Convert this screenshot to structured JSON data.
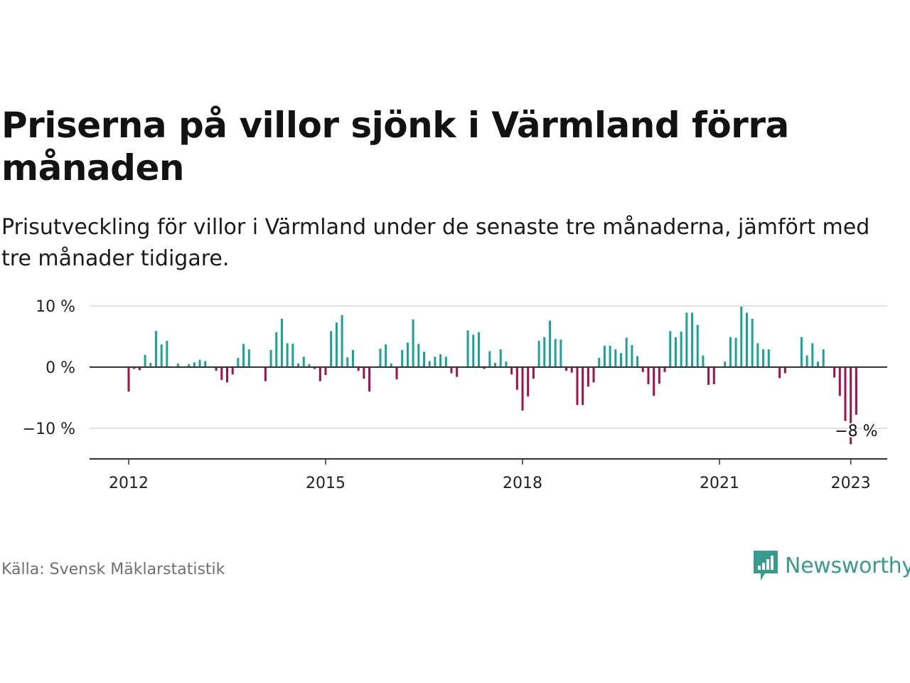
{
  "header": {
    "title": "Priserna på villor sjönk i Värmland förra månaden",
    "subtitle": "Prisutveckling för villor i Värmland under de senaste tre månaderna, jämfört med tre månader tidigare."
  },
  "footer": {
    "source": "Källa: Svensk Mäklarstatistik",
    "brand": "Newsworthy"
  },
  "colors": {
    "positive": "#17a398",
    "negative": "#a3104a",
    "grid": "#d9d9d9",
    "axis": "#333333",
    "brand": "#3a9a8e"
  },
  "chart_data": {
    "type": "bar",
    "x_start": "2012-01",
    "values": [
      -4.0,
      -0.3,
      -0.5,
      2.0,
      0.7,
      5.9,
      3.7,
      4.3,
      0.0,
      0.6,
      0.0,
      0.5,
      0.8,
      1.2,
      1.0,
      0.0,
      -0.6,
      -2.1,
      -2.5,
      -1.2,
      1.5,
      3.8,
      2.9,
      0.0,
      0.0,
      -2.3,
      2.8,
      5.7,
      7.9,
      3.9,
      3.8,
      0.6,
      1.7,
      0.5,
      -0.3,
      -2.3,
      -1.3,
      5.9,
      7.3,
      8.5,
      1.6,
      2.8,
      -0.6,
      -1.9,
      -4.0,
      0.0,
      3.0,
      3.7,
      0.6,
      -2.0,
      2.8,
      4.0,
      7.8,
      3.8,
      2.5,
      1.0,
      1.7,
      2.1,
      1.7,
      -1.0,
      -1.6,
      0.0,
      6.0,
      5.3,
      5.7,
      -0.3,
      2.6,
      0.7,
      2.9,
      0.9,
      -1.2,
      -3.7,
      -7.1,
      -4.8,
      -1.9,
      4.3,
      4.9,
      7.6,
      4.6,
      4.5,
      -0.6,
      -0.9,
      -6.2,
      -6.2,
      -3.2,
      -2.5,
      1.5,
      3.5,
      3.5,
      2.9,
      2.3,
      4.8,
      3.6,
      1.8,
      -0.8,
      -2.8,
      -4.7,
      -2.7,
      -0.8,
      5.9,
      4.9,
      5.8,
      8.9,
      8.9,
      6.9,
      1.9,
      -2.9,
      -2.8,
      0.0,
      0.9,
      4.9,
      4.8,
      9.9,
      8.9,
      7.9,
      3.9,
      2.9,
      2.9,
      0.0,
      -1.8,
      -1.0,
      0.0,
      0.0,
      4.9,
      1.9,
      3.9,
      0.9,
      2.9,
      0.0,
      -1.7,
      -4.7,
      -8.8,
      -12.6,
      -7.8
    ],
    "last_value_label": "−8 %",
    "ylim": [
      -15,
      10
    ],
    "yticks": [
      10,
      0,
      -10
    ],
    "ytick_labels": [
      "10 %",
      "0 %",
      "−10 %"
    ],
    "xticks": [
      "2012",
      "2015",
      "2018",
      "2021",
      "2023"
    ],
    "grid": true,
    "legend": "none"
  }
}
